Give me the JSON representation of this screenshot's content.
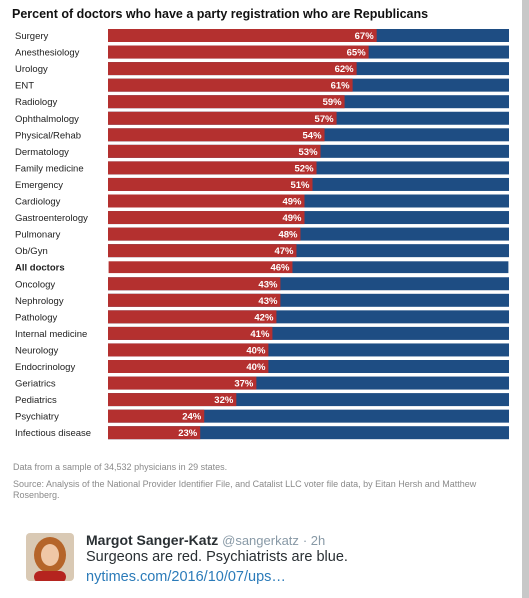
{
  "chart_data": {
    "type": "bar",
    "stacked": true,
    "orientation": "horizontal",
    "title": "Percent of doctors who have a party registration who are Republicans",
    "categories": [
      "Surgery",
      "Anesthesiology",
      "Urology",
      "ENT",
      "Radiology",
      "Ophthalmology",
      "Physical/Rehab",
      "Dermatology",
      "Family medicine",
      "Emergency",
      "Cardiology",
      "Gastroenterology",
      "Pulmonary",
      "Ob/Gyn",
      "All doctors",
      "Oncology",
      "Nephrology",
      "Pathology",
      "Internal medicine",
      "Neurology",
      "Endocrinology",
      "Geriatrics",
      "Pediatrics",
      "Psychiatry",
      "Infectious disease"
    ],
    "values": [
      67,
      65,
      62,
      61,
      59,
      57,
      54,
      53,
      52,
      51,
      49,
      49,
      48,
      47,
      46,
      43,
      43,
      42,
      41,
      40,
      40,
      37,
      32,
      24,
      23
    ],
    "value_labels": [
      "67%",
      "65%",
      "62%",
      "61%",
      "59%",
      "57%",
      "54%",
      "53%",
      "52%",
      "51%",
      "49%",
      "49%",
      "48%",
      "47%",
      "46%",
      "43%",
      "43%",
      "42%",
      "41%",
      "40%",
      "40%",
      "37%",
      "32%",
      "24%",
      "23%"
    ],
    "highlight_category": "All doctors",
    "xlim": [
      0,
      100
    ],
    "colors": {
      "republican": "#b4302f",
      "democrat": "#1e4d83",
      "highlight_border": "#ffffff"
    },
    "legend": false,
    "grid": false
  },
  "notes": {
    "sample": "Data from a sample of 34,532 physicians in 29 states.",
    "source": "Source: Analysis of the National Provider Identifier File, and Catalist LLC voter file data, by Eitan Hersh and Matthew Rosenberg."
  },
  "tweet": {
    "name": "Margot Sanger-Katz",
    "handle": "@sangerkatz",
    "time": "· 2h",
    "text": "Surgeons are red. Psychiatrists are blue.",
    "link": "nytimes.com/2016/10/07/ups…",
    "avatar_icon": "avatar-photo"
  }
}
